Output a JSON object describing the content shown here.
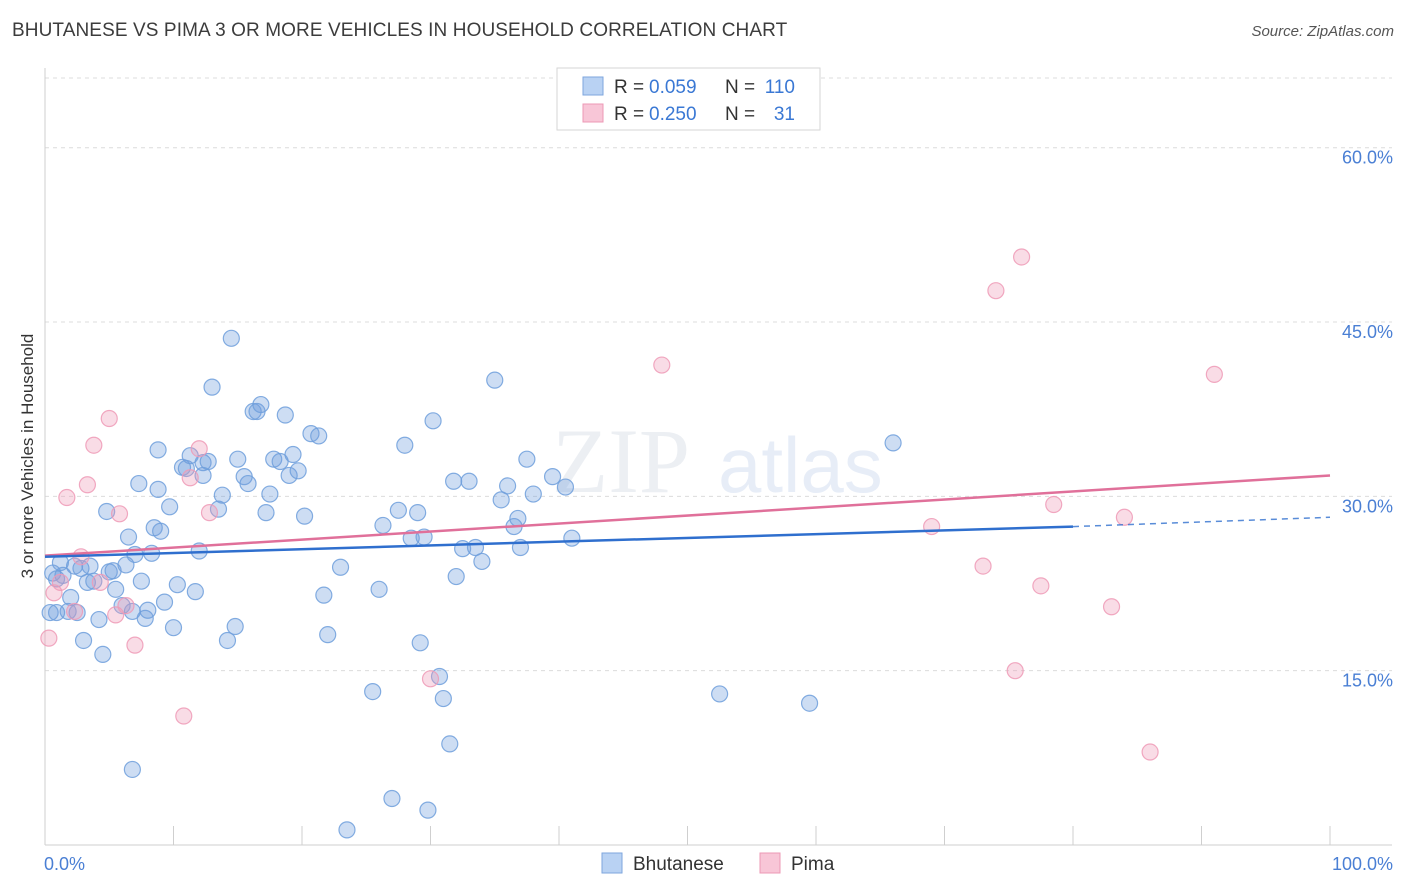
{
  "title": "BHUTANESE VS PIMA 3 OR MORE VEHICLES IN HOUSEHOLD CORRELATION CHART",
  "source": "Source: ZipAtlas.com",
  "watermark": "ZIPatlas",
  "legend_stats": [
    {
      "r_label": "R =",
      "r_value": "0.059",
      "n_label": "N =",
      "n_value": "110"
    },
    {
      "r_label": "R =",
      "r_value": "0.250",
      "n_label": "N =",
      "n_value": "31"
    }
  ],
  "chart_data": {
    "type": "scatter",
    "title": "BHUTANESE VS PIMA 3 OR MORE VEHICLES IN HOUSEHOLD CORRELATION CHART",
    "xlabel": "",
    "ylabel": "3 or more Vehicles in Household",
    "xlim": [
      0,
      100
    ],
    "ylim": [
      0,
      66
    ],
    "x_tick_labels": [
      "0.0%",
      "100.0%"
    ],
    "y_ticks": [
      15,
      30,
      45,
      60
    ],
    "y_tick_labels": [
      "15.0%",
      "30.0%",
      "45.0%",
      "60.0%"
    ],
    "grid": true,
    "legend_position": "bottom-center",
    "colors": {
      "bhutanese": "#6f9fdc",
      "pima": "#ef9ab6",
      "bhutanese_line": "#2f6fce",
      "pima_line": "#e0709a",
      "tick_label": "#4a7fd4"
    },
    "series": [
      {
        "name": "Bhutanese",
        "trend": {
          "x0": 0,
          "y0": 24.8,
          "x1": 80,
          "y1": 27.4,
          "dashed_to_x": 100,
          "dashed_to_y": 28.2
        },
        "points": [
          [
            0.4,
            20.0
          ],
          [
            0.6,
            23.4
          ],
          [
            0.9,
            22.9
          ],
          [
            1.2,
            24.3
          ],
          [
            1.8,
            20.1
          ],
          [
            2.0,
            21.3
          ],
          [
            2.3,
            24.0
          ],
          [
            2.5,
            20.0
          ],
          [
            3.0,
            17.6
          ],
          [
            3.3,
            22.6
          ],
          [
            3.5,
            24.0
          ],
          [
            3.8,
            22.7
          ],
          [
            4.2,
            19.4
          ],
          [
            4.5,
            16.4
          ],
          [
            4.8,
            28.7
          ],
          [
            5.0,
            23.5
          ],
          [
            5.3,
            23.6
          ],
          [
            5.5,
            22.0
          ],
          [
            6.0,
            20.6
          ],
          [
            6.3,
            24.1
          ],
          [
            6.5,
            26.5
          ],
          [
            6.8,
            20.1
          ],
          [
            7.0,
            25.0
          ],
          [
            7.3,
            31.1
          ],
          [
            7.5,
            22.7
          ],
          [
            7.8,
            19.5
          ],
          [
            8.0,
            20.2
          ],
          [
            8.3,
            25.1
          ],
          [
            8.5,
            27.3
          ],
          [
            8.8,
            30.6
          ],
          [
            9.0,
            27.0
          ],
          [
            9.3,
            20.9
          ],
          [
            9.7,
            29.1
          ],
          [
            10.0,
            18.7
          ],
          [
            10.3,
            22.4
          ],
          [
            10.7,
            32.5
          ],
          [
            11.0,
            32.4
          ],
          [
            11.3,
            33.5
          ],
          [
            11.7,
            21.8
          ],
          [
            12.0,
            25.3
          ],
          [
            12.3,
            32.9
          ],
          [
            12.7,
            33.0
          ],
          [
            13.0,
            39.4
          ],
          [
            13.5,
            28.9
          ],
          [
            13.8,
            30.1
          ],
          [
            14.2,
            17.6
          ],
          [
            14.5,
            43.6
          ],
          [
            14.8,
            18.8
          ],
          [
            15.0,
            33.2
          ],
          [
            15.5,
            31.7
          ],
          [
            15.8,
            31.1
          ],
          [
            16.2,
            37.3
          ],
          [
            16.5,
            37.3
          ],
          [
            16.8,
            37.9
          ],
          [
            17.2,
            28.6
          ],
          [
            17.5,
            30.2
          ],
          [
            17.8,
            33.2
          ],
          [
            18.3,
            33.0
          ],
          [
            18.7,
            37.0
          ],
          [
            19.0,
            31.8
          ],
          [
            19.3,
            33.6
          ],
          [
            19.7,
            32.2
          ],
          [
            20.2,
            28.3
          ],
          [
            20.7,
            35.4
          ],
          [
            21.3,
            35.2
          ],
          [
            21.7,
            21.5
          ],
          [
            22.0,
            18.1
          ],
          [
            23.0,
            23.9
          ],
          [
            23.5,
            1.3
          ],
          [
            25.5,
            13.2
          ],
          [
            26.0,
            22.0
          ],
          [
            26.3,
            27.5
          ],
          [
            27.0,
            4.0
          ],
          [
            27.5,
            28.8
          ],
          [
            28.0,
            34.4
          ],
          [
            28.5,
            26.4
          ],
          [
            29.0,
            28.6
          ],
          [
            29.2,
            17.4
          ],
          [
            29.5,
            26.5
          ],
          [
            29.8,
            3.0
          ],
          [
            30.2,
            36.5
          ],
          [
            30.7,
            14.5
          ],
          [
            31.0,
            12.6
          ],
          [
            31.5,
            8.7
          ],
          [
            31.8,
            31.3
          ],
          [
            32.0,
            23.1
          ],
          [
            32.5,
            25.5
          ],
          [
            33.0,
            31.3
          ],
          [
            33.5,
            25.6
          ],
          [
            34.0,
            24.4
          ],
          [
            35.0,
            40.0
          ],
          [
            35.5,
            29.7
          ],
          [
            36.0,
            30.9
          ],
          [
            36.5,
            27.4
          ],
          [
            36.8,
            28.1
          ],
          [
            37.0,
            25.6
          ],
          [
            37.5,
            33.2
          ],
          [
            38.0,
            30.2
          ],
          [
            39.5,
            31.7
          ],
          [
            40.5,
            30.8
          ],
          [
            41.0,
            26.4
          ],
          [
            52.5,
            13.0
          ],
          [
            59.5,
            12.2
          ],
          [
            66.0,
            34.6
          ],
          [
            8.8,
            34.0
          ],
          [
            2.8,
            23.8
          ],
          [
            6.8,
            6.5
          ],
          [
            12.3,
            31.8
          ],
          [
            1.4,
            23.2
          ],
          [
            0.9,
            20.0
          ]
        ]
      },
      {
        "name": "Pima",
        "trend": {
          "x0": 0,
          "y0": 24.9,
          "x1": 100,
          "y1": 31.8
        },
        "points": [
          [
            0.3,
            17.8
          ],
          [
            0.7,
            21.7
          ],
          [
            1.2,
            22.6
          ],
          [
            1.7,
            29.9
          ],
          [
            2.3,
            20.1
          ],
          [
            2.8,
            24.8
          ],
          [
            3.3,
            31.0
          ],
          [
            3.8,
            34.4
          ],
          [
            4.3,
            22.6
          ],
          [
            5.0,
            36.7
          ],
          [
            5.5,
            19.8
          ],
          [
            5.8,
            28.5
          ],
          [
            6.3,
            20.6
          ],
          [
            7.0,
            17.2
          ],
          [
            10.8,
            11.1
          ],
          [
            11.3,
            31.6
          ],
          [
            12.0,
            34.1
          ],
          [
            12.8,
            28.6
          ],
          [
            30.0,
            14.3
          ],
          [
            48.0,
            41.3
          ],
          [
            69.0,
            27.4
          ],
          [
            73.0,
            24.0
          ],
          [
            74.0,
            47.7
          ],
          [
            75.5,
            15.0
          ],
          [
            76.0,
            50.6
          ],
          [
            77.5,
            22.3
          ],
          [
            78.5,
            29.3
          ],
          [
            83.0,
            20.5
          ],
          [
            84.0,
            28.2
          ],
          [
            86.0,
            8.0
          ],
          [
            91.0,
            40.5
          ]
        ]
      }
    ]
  },
  "legend_bottom": [
    {
      "label": "Bhutanese"
    },
    {
      "label": "Pima"
    }
  ]
}
